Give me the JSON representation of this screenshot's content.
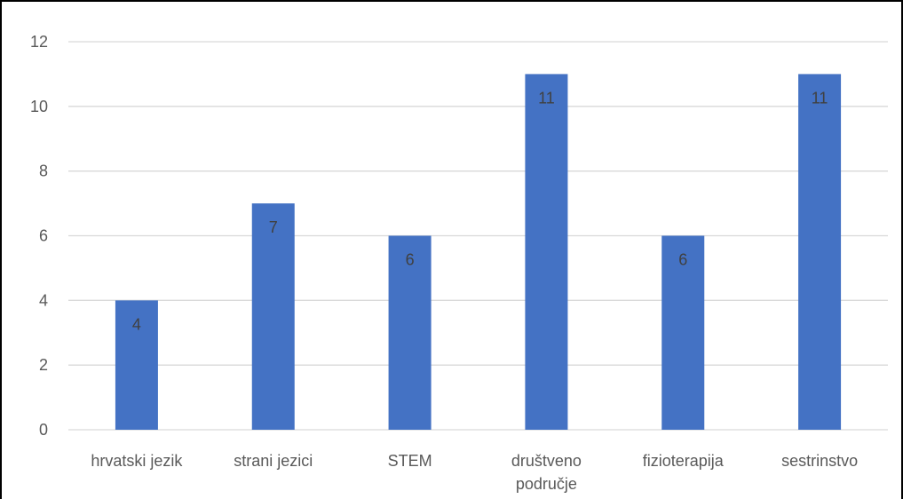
{
  "chart_data": {
    "type": "bar",
    "title": "",
    "xlabel": "",
    "ylabel": "",
    "categories": [
      [
        "hrvatski jezik"
      ],
      [
        "strani jezici"
      ],
      [
        "STEM"
      ],
      [
        "društveno",
        "područje"
      ],
      [
        "fizioterapija"
      ],
      [
        "sestrinstvo"
      ]
    ],
    "values": [
      4,
      7,
      6,
      11,
      6,
      11
    ],
    "data_labels": [
      "4",
      "7",
      "6",
      "11",
      "6",
      "11"
    ],
    "ylim": [
      0,
      12
    ],
    "yticks": [
      0,
      2,
      4,
      6,
      8,
      10,
      12
    ],
    "ytick_labels": [
      "0",
      "2",
      "4",
      "6",
      "8",
      "10",
      "12"
    ],
    "grid": true,
    "legend": "none",
    "colors": {
      "bar": "#4472C4",
      "grid": "#D9D9D9",
      "tick_text": "#595959",
      "data_label_text": "#404040"
    }
  }
}
